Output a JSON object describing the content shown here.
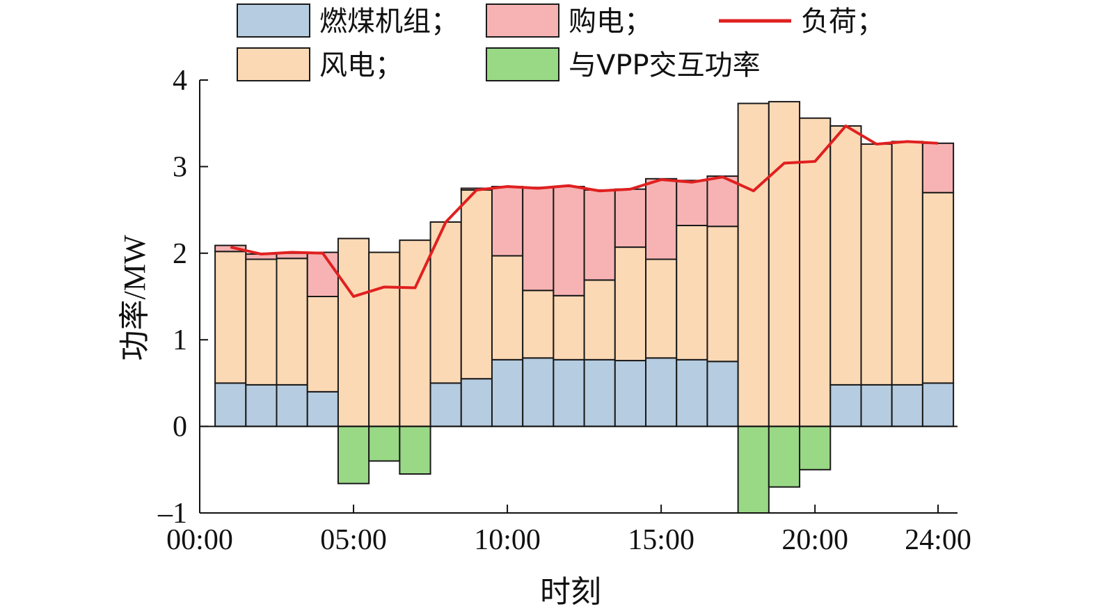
{
  "chart_data": {
    "type": "bar",
    "stacked": true,
    "xlabel": "时刻",
    "ylabel": "功率/MW",
    "ylim": [
      -1,
      4
    ],
    "yticks": [
      "-1",
      "0",
      "1",
      "2",
      "3",
      "4"
    ],
    "xticks": [
      "00:00",
      "05:00",
      "10:00",
      "15:00",
      "20:00",
      "24:00"
    ],
    "xrange_hours": [
      0,
      24
    ],
    "categories": [
      1,
      2,
      3,
      4,
      5,
      6,
      7,
      8,
      9,
      10,
      11,
      12,
      13,
      14,
      15,
      16,
      17,
      18,
      19,
      20,
      21,
      22,
      23,
      24
    ],
    "legend": {
      "position": "top",
      "entries": [
        {
          "key": "coal",
          "label": "燃煤机组；",
          "kind": "bar"
        },
        {
          "key": "purchase",
          "label": "购电；",
          "kind": "bar"
        },
        {
          "key": "load",
          "label": "负荷；",
          "kind": "line"
        },
        {
          "key": "wind",
          "label": "风电；",
          "kind": "bar"
        },
        {
          "key": "vpp",
          "label": "与VPP交互功率",
          "kind": "bar"
        }
      ]
    },
    "series": [
      {
        "key": "coal",
        "name": "燃煤机组",
        "color": "#b6cce0",
        "values": [
          0.5,
          0.48,
          0.48,
          0.4,
          0,
          0,
          0,
          0.5,
          0.55,
          0.77,
          0.79,
          0.77,
          0.77,
          0.76,
          0.79,
          0.77,
          0.75,
          0,
          0,
          0,
          0.48,
          0.48,
          0.48,
          0.5
        ]
      },
      {
        "key": "wind",
        "name": "风电",
        "color": "#fcd9b5",
        "values": [
          1.52,
          1.45,
          1.46,
          1.1,
          2.17,
          2.01,
          2.15,
          1.86,
          2.18,
          1.2,
          0.78,
          0.74,
          0.92,
          1.31,
          1.14,
          1.55,
          1.56,
          3.73,
          3.75,
          3.56,
          2.99,
          2.78,
          2.81,
          2.2
        ]
      },
      {
        "key": "purchase",
        "name": "购电",
        "color": "#f7b3b3",
        "values": [
          0.07,
          0.06,
          0.06,
          0.51,
          0,
          0,
          0,
          0,
          0.02,
          0.8,
          1.19,
          1.26,
          1.04,
          0.67,
          0.93,
          0.52,
          0.58,
          0,
          0,
          0,
          0,
          0,
          0,
          0.57
        ]
      },
      {
        "key": "vpp",
        "name": "与VPP交互功率",
        "color": "#99d986",
        "values": [
          0,
          0,
          0,
          0,
          -0.66,
          -0.4,
          -0.55,
          0,
          0,
          0,
          0,
          0,
          0,
          0,
          0,
          0,
          0,
          -1.0,
          -0.7,
          -0.5,
          0,
          0,
          0,
          0
        ]
      },
      {
        "key": "load",
        "name": "负荷",
        "color": "#e02020",
        "kind": "line",
        "values": [
          2.07,
          1.99,
          2.01,
          2.0,
          1.5,
          1.61,
          1.6,
          2.36,
          2.73,
          2.77,
          2.75,
          2.78,
          2.72,
          2.74,
          2.85,
          2.82,
          2.88,
          2.72,
          3.04,
          3.06,
          3.47,
          3.26,
          3.29,
          3.27
        ]
      }
    ]
  }
}
